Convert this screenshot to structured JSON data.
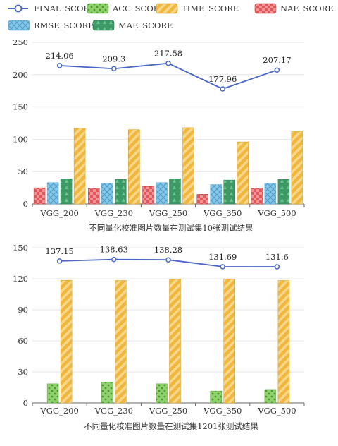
{
  "legend": [
    {
      "name": "FINAL_SCORE",
      "kind": "line",
      "color": "#4a66c4"
    },
    {
      "name": "ACC_SCORE",
      "kind": "bar",
      "pattern": "dots",
      "color": "#8fd16b"
    },
    {
      "name": "TIME_SCORE",
      "kind": "bar",
      "pattern": "stripes",
      "color": "#f0b73e"
    },
    {
      "name": "NAE_SCORE",
      "kind": "bar",
      "pattern": "checker",
      "color": "#e0585c"
    },
    {
      "name": "RMSE_SCORE",
      "kind": "bar",
      "pattern": "cross",
      "color": "#86c8ea"
    },
    {
      "name": "MAE_SCORE",
      "kind": "bar",
      "pattern": "triangles",
      "color": "#3d9a66"
    }
  ],
  "chart_data": [
    {
      "type": "bar",
      "title": "",
      "xlabel": "不同量化校准图片数量在测试集10张测试结果",
      "ylabel": "",
      "categories": [
        "VGG_200",
        "VGG_230",
        "VGG_250",
        "VGG_350",
        "VGG_500"
      ],
      "ylim": [
        0,
        250
      ],
      "yticks": [
        0,
        50,
        100,
        150,
        200,
        250
      ],
      "grid": true,
      "line_series": {
        "name": "FINAL_SCORE",
        "values": [
          214.06,
          209.3,
          217.58,
          177.96,
          207.17
        ],
        "labels": [
          "214.06",
          "209.3",
          "217.58",
          "177.96",
          "207.17"
        ]
      },
      "series": [
        {
          "name": "NAE_SCORE",
          "values": [
            25,
            24,
            27,
            15,
            24
          ]
        },
        {
          "name": "RMSE_SCORE",
          "values": [
            33,
            32,
            33,
            30,
            32
          ]
        },
        {
          "name": "MAE_SCORE",
          "values": [
            39,
            38,
            39,
            37,
            38
          ]
        },
        {
          "name": "TIME_SCORE",
          "values": [
            117,
            115,
            118,
            96,
            112
          ]
        }
      ]
    },
    {
      "type": "bar",
      "title": "",
      "xlabel": "不同量化校准图片数量在测试集1201张测试结果",
      "ylabel": "",
      "categories": [
        "VGG_200",
        "VGG_230",
        "VGG_250",
        "VGG_350",
        "VGG_500"
      ],
      "ylim": [
        0,
        150
      ],
      "yticks": [
        0,
        30,
        60,
        90,
        120,
        150
      ],
      "grid": true,
      "line_series": {
        "name": "FINAL_SCORE",
        "values": [
          137.15,
          138.63,
          138.28,
          131.69,
          131.6
        ],
        "labels": [
          "137.15",
          "138.63",
          "138.28",
          "131.69",
          "131.6"
        ]
      },
      "series": [
        {
          "name": "ACC_SCORE",
          "values": [
            18.5,
            20.2,
            18.5,
            11.5,
            13
          ]
        },
        {
          "name": "TIME_SCORE",
          "values": [
            118.5,
            118.3,
            119.8,
            119.8,
            118.3
          ]
        }
      ]
    }
  ]
}
